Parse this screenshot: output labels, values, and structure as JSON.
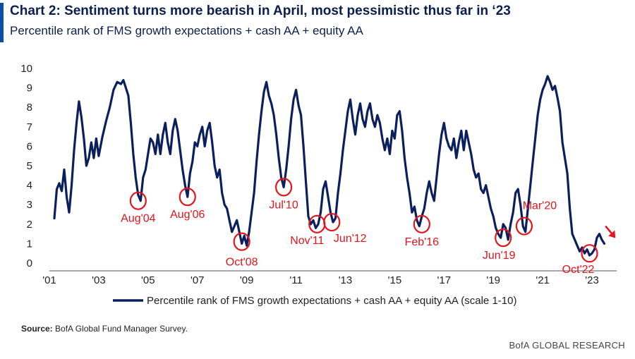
{
  "header": {
    "title": "Chart 2: Sentiment turns more bearish in April, most pessimistic thus far in ‘23",
    "subtitle": "Percentile rank of FMS growth expectations + cash AA + equity AA"
  },
  "source": {
    "label": "Source:",
    "text": "BofA Global Fund Manager Survey."
  },
  "footer": {
    "brand": "BofA GLOBAL RESEARCH"
  },
  "colors": {
    "line": "#0b1f5c",
    "annotation": "#e3141b",
    "accent": "#0a4ea8"
  },
  "chart_data": {
    "type": "line",
    "title": "Chart 2: Sentiment turns more bearish in April, most pessimistic thus far in ‘23",
    "subtitle": "Percentile rank of FMS growth expectations + cash AA + equity AA",
    "xlim": [
      2001,
      2024
    ],
    "ylim": [
      0,
      10
    ],
    "yticks": [
      "0",
      "1",
      "2",
      "3",
      "4",
      "5",
      "6",
      "7",
      "8",
      "9",
      "10"
    ],
    "xticks": [
      {
        "value": 2001,
        "label": "'01"
      },
      {
        "value": 2003,
        "label": "'03"
      },
      {
        "value": 2005,
        "label": "'05"
      },
      {
        "value": 2007,
        "label": "'07"
      },
      {
        "value": 2009,
        "label": "'09"
      },
      {
        "value": 2011,
        "label": "'11"
      },
      {
        "value": 2013,
        "label": "'13"
      },
      {
        "value": 2015,
        "label": "'15"
      },
      {
        "value": 2017,
        "label": "'17"
      },
      {
        "value": 2019,
        "label": "'19"
      },
      {
        "value": 2021,
        "label": "'21"
      },
      {
        "value": 2023,
        "label": "'23"
      }
    ],
    "grid": false,
    "legend": "bottom-center",
    "series": [
      {
        "name": "Percentile rank of FMS growth expectations + cash AA + equity AA (scale 1-10)",
        "points": [
          [
            2001.2,
            2.3
          ],
          [
            2001.3,
            3.8
          ],
          [
            2001.4,
            4.1
          ],
          [
            2001.5,
            3.7
          ],
          [
            2001.6,
            4.8
          ],
          [
            2001.7,
            3.4
          ],
          [
            2001.8,
            2.6
          ],
          [
            2001.9,
            4.0
          ],
          [
            2002.0,
            5.8
          ],
          [
            2002.1,
            7.2
          ],
          [
            2002.2,
            8.3
          ],
          [
            2002.3,
            7.5
          ],
          [
            2002.4,
            6.4
          ],
          [
            2002.5,
            5.0
          ],
          [
            2002.6,
            5.4
          ],
          [
            2002.7,
            6.2
          ],
          [
            2002.8,
            5.4
          ],
          [
            2002.9,
            6.4
          ],
          [
            2003.0,
            5.5
          ],
          [
            2003.15,
            6.5
          ],
          [
            2003.3,
            7.3
          ],
          [
            2003.45,
            8.0
          ],
          [
            2003.6,
            8.9
          ],
          [
            2003.75,
            9.3
          ],
          [
            2003.9,
            9.2
          ],
          [
            2004.0,
            9.4
          ],
          [
            2004.1,
            9.0
          ],
          [
            2004.2,
            8.6
          ],
          [
            2004.3,
            7.2
          ],
          [
            2004.4,
            5.6
          ],
          [
            2004.5,
            4.4
          ],
          [
            2004.6,
            3.5
          ],
          [
            2004.7,
            3.2
          ],
          [
            2004.8,
            4.4
          ],
          [
            2004.9,
            4.8
          ],
          [
            2005.0,
            5.6
          ],
          [
            2005.1,
            6.4
          ],
          [
            2005.2,
            6.2
          ],
          [
            2005.3,
            5.6
          ],
          [
            2005.4,
            6.6
          ],
          [
            2005.5,
            5.6
          ],
          [
            2005.6,
            6.6
          ],
          [
            2005.7,
            7.2
          ],
          [
            2005.8,
            6.2
          ],
          [
            2005.9,
            5.6
          ],
          [
            2006.0,
            6.8
          ],
          [
            2006.1,
            7.4
          ],
          [
            2006.2,
            6.8
          ],
          [
            2006.3,
            5.8
          ],
          [
            2006.4,
            4.8
          ],
          [
            2006.5,
            4.0
          ],
          [
            2006.6,
            3.4
          ],
          [
            2006.7,
            4.6
          ],
          [
            2006.8,
            5.2
          ],
          [
            2006.9,
            6.2
          ],
          [
            2007.0,
            6.0
          ],
          [
            2007.1,
            6.6
          ],
          [
            2007.2,
            7.0
          ],
          [
            2007.3,
            6.0
          ],
          [
            2007.4,
            6.8
          ],
          [
            2007.5,
            7.2
          ],
          [
            2007.6,
            6.2
          ],
          [
            2007.7,
            5.0
          ],
          [
            2007.8,
            4.4
          ],
          [
            2007.9,
            4.8
          ],
          [
            2008.0,
            3.6
          ],
          [
            2008.1,
            3.0
          ],
          [
            2008.2,
            2.8
          ],
          [
            2008.3,
            2.2
          ],
          [
            2008.4,
            1.6
          ],
          [
            2008.5,
            1.9
          ],
          [
            2008.6,
            2.2
          ],
          [
            2008.7,
            1.6
          ],
          [
            2008.8,
            1.0
          ],
          [
            2008.9,
            1.4
          ],
          [
            2009.0,
            0.9
          ],
          [
            2009.1,
            1.6
          ],
          [
            2009.2,
            2.6
          ],
          [
            2009.3,
            3.6
          ],
          [
            2009.4,
            5.2
          ],
          [
            2009.5,
            6.6
          ],
          [
            2009.6,
            7.8
          ],
          [
            2009.7,
            8.8
          ],
          [
            2009.8,
            9.3
          ],
          [
            2009.9,
            8.6
          ],
          [
            2010.0,
            8.2
          ],
          [
            2010.1,
            7.6
          ],
          [
            2010.2,
            6.6
          ],
          [
            2010.3,
            5.4
          ],
          [
            2010.4,
            4.4
          ],
          [
            2010.5,
            3.9
          ],
          [
            2010.6,
            4.8
          ],
          [
            2010.7,
            6.0
          ],
          [
            2010.8,
            7.4
          ],
          [
            2010.9,
            8.4
          ],
          [
            2011.0,
            8.9
          ],
          [
            2011.1,
            8.1
          ],
          [
            2011.2,
            7.6
          ],
          [
            2011.3,
            6.0
          ],
          [
            2011.4,
            4.2
          ],
          [
            2011.5,
            2.4
          ],
          [
            2011.6,
            2.0
          ],
          [
            2011.7,
            2.2
          ],
          [
            2011.8,
            1.8
          ],
          [
            2011.9,
            2.0
          ],
          [
            2012.0,
            2.6
          ],
          [
            2012.1,
            3.8
          ],
          [
            2012.2,
            4.2
          ],
          [
            2012.3,
            3.4
          ],
          [
            2012.4,
            2.6
          ],
          [
            2012.5,
            2.1
          ],
          [
            2012.6,
            2.3
          ],
          [
            2012.7,
            3.6
          ],
          [
            2012.8,
            4.6
          ],
          [
            2012.9,
            5.8
          ],
          [
            2013.0,
            6.8
          ],
          [
            2013.1,
            7.8
          ],
          [
            2013.2,
            8.4
          ],
          [
            2013.3,
            7.4
          ],
          [
            2013.4,
            6.6
          ],
          [
            2013.5,
            7.6
          ],
          [
            2013.6,
            8.2
          ],
          [
            2013.7,
            7.4
          ],
          [
            2013.8,
            7.0
          ],
          [
            2013.9,
            7.8
          ],
          [
            2014.0,
            8.2
          ],
          [
            2014.1,
            7.4
          ],
          [
            2014.2,
            7.0
          ],
          [
            2014.3,
            7.6
          ],
          [
            2014.4,
            7.2
          ],
          [
            2014.5,
            6.4
          ],
          [
            2014.6,
            5.8
          ],
          [
            2014.7,
            6.4
          ],
          [
            2014.8,
            5.6
          ],
          [
            2014.9,
            6.8
          ],
          [
            2015.0,
            6.4
          ],
          [
            2015.1,
            7.6
          ],
          [
            2015.2,
            7.8
          ],
          [
            2015.3,
            6.8
          ],
          [
            2015.4,
            5.4
          ],
          [
            2015.5,
            4.4
          ],
          [
            2015.6,
            3.6
          ],
          [
            2015.7,
            2.6
          ],
          [
            2015.8,
            2.9
          ],
          [
            2015.9,
            2.2
          ],
          [
            2016.0,
            1.9
          ],
          [
            2016.1,
            2.4
          ],
          [
            2016.2,
            2.8
          ],
          [
            2016.3,
            3.6
          ],
          [
            2016.4,
            4.2
          ],
          [
            2016.5,
            3.6
          ],
          [
            2016.6,
            3.2
          ],
          [
            2016.7,
            4.4
          ],
          [
            2016.8,
            5.6
          ],
          [
            2016.9,
            6.6
          ],
          [
            2017.0,
            7.2
          ],
          [
            2017.1,
            6.4
          ],
          [
            2017.2,
            6.0
          ],
          [
            2017.3,
            5.8
          ],
          [
            2017.4,
            6.4
          ],
          [
            2017.5,
            5.4
          ],
          [
            2017.6,
            6.2
          ],
          [
            2017.7,
            6.8
          ],
          [
            2017.8,
            5.8
          ],
          [
            2017.9,
            6.8
          ],
          [
            2018.0,
            6.2
          ],
          [
            2018.1,
            5.6
          ],
          [
            2018.2,
            4.8
          ],
          [
            2018.3,
            4.4
          ],
          [
            2018.4,
            4.6
          ],
          [
            2018.5,
            3.8
          ],
          [
            2018.6,
            3.6
          ],
          [
            2018.7,
            4.0
          ],
          [
            2018.8,
            3.4
          ],
          [
            2018.9,
            2.8
          ],
          [
            2019.0,
            2.4
          ],
          [
            2019.1,
            1.8
          ],
          [
            2019.2,
            1.5
          ],
          [
            2019.3,
            1.3
          ],
          [
            2019.4,
            2.0
          ],
          [
            2019.5,
            1.8
          ],
          [
            2019.6,
            1.2
          ],
          [
            2019.7,
            2.0
          ],
          [
            2019.8,
            2.6
          ],
          [
            2019.9,
            3.6
          ],
          [
            2020.0,
            3.8
          ],
          [
            2020.1,
            3.0
          ],
          [
            2020.2,
            1.9
          ],
          [
            2020.3,
            1.6
          ],
          [
            2020.4,
            2.8
          ],
          [
            2020.5,
            4.0
          ],
          [
            2020.6,
            5.2
          ],
          [
            2020.7,
            6.4
          ],
          [
            2020.8,
            7.6
          ],
          [
            2020.9,
            8.4
          ],
          [
            2021.0,
            8.9
          ],
          [
            2021.1,
            9.2
          ],
          [
            2021.2,
            9.6
          ],
          [
            2021.3,
            9.3
          ],
          [
            2021.4,
            8.9
          ],
          [
            2021.5,
            9.1
          ],
          [
            2021.6,
            8.5
          ],
          [
            2021.7,
            7.8
          ],
          [
            2021.8,
            6.2
          ],
          [
            2021.9,
            5.4
          ],
          [
            2022.0,
            4.6
          ],
          [
            2022.1,
            2.8
          ],
          [
            2022.2,
            1.5
          ],
          [
            2022.3,
            1.2
          ],
          [
            2022.4,
            0.9
          ],
          [
            2022.5,
            0.6
          ],
          [
            2022.6,
            0.8
          ],
          [
            2022.7,
            0.5
          ],
          [
            2022.8,
            0.7
          ],
          [
            2022.9,
            0.4
          ],
          [
            2023.0,
            0.5
          ],
          [
            2023.1,
            0.7
          ],
          [
            2023.2,
            1.3
          ],
          [
            2023.3,
            1.5
          ],
          [
            2023.4,
            1.2
          ],
          [
            2023.5,
            1.0
          ]
        ]
      }
    ],
    "annotations": [
      {
        "label": "Aug'04",
        "x": 2004.6,
        "y": 3.2
      },
      {
        "label": "Aug'06",
        "x": 2006.6,
        "y": 3.4
      },
      {
        "label": "Oct'08",
        "x": 2008.8,
        "y": 1.1
      },
      {
        "label": "Jul'10",
        "x": 2010.5,
        "y": 3.9
      },
      {
        "label": "Nov'11",
        "x": 2011.85,
        "y": 2.0
      },
      {
        "label": "Jun'12",
        "x": 2012.45,
        "y": 2.1
      },
      {
        "label": "Feb'16",
        "x": 2016.1,
        "y": 2.0
      },
      {
        "label": "Jun'19",
        "x": 2019.4,
        "y": 1.3
      },
      {
        "label": "Mar'20",
        "x": 2020.25,
        "y": 1.9
      },
      {
        "label": "Oct'22",
        "x": 2022.9,
        "y": 0.5
      }
    ]
  }
}
